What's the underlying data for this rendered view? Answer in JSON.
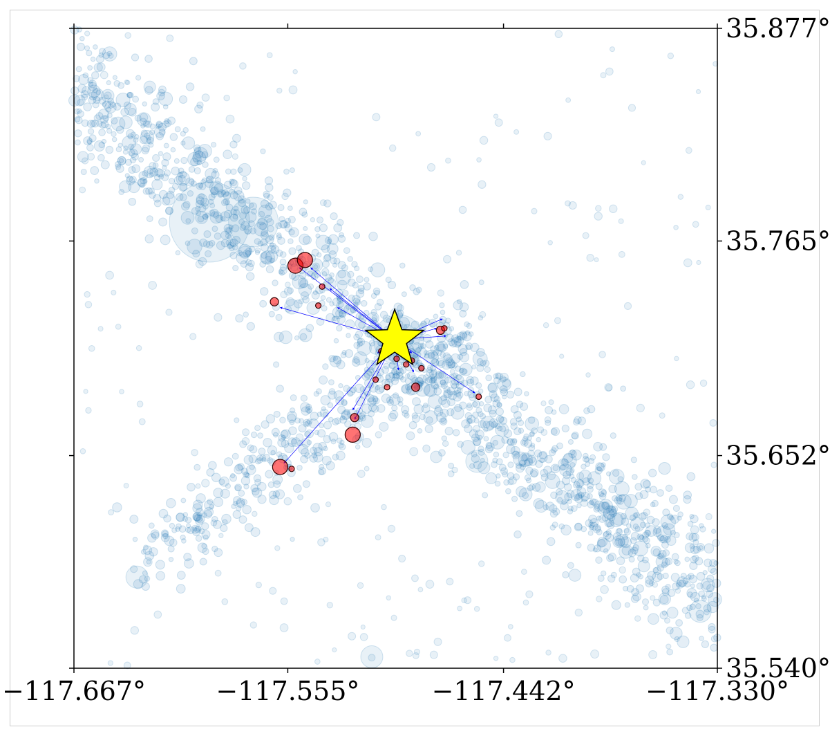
{
  "chart_data": {
    "type": "scatter",
    "title": "",
    "xlabel": "",
    "ylabel": "",
    "xlim": [
      -117.667,
      -117.33
    ],
    "ylim": [
      35.54,
      35.877
    ],
    "x_ticks": [
      -117.667,
      -117.555,
      -117.442,
      -117.33
    ],
    "x_tick_labels": [
      "−117.667°",
      "−117.555°",
      "−117.442°",
      "−117.330°"
    ],
    "y_ticks": [
      35.54,
      35.652,
      35.765,
      35.877
    ],
    "y_tick_labels": [
      "35.540°",
      "35.652°",
      "35.765°",
      "35.877°"
    ],
    "y_axis_side": "right",
    "grid": false,
    "legend": "none",
    "colors": {
      "background_events": "#1f77b4",
      "linked_events": "#ff0000",
      "arrows": "#0000ff",
      "mainshock_fill": "#ffff00",
      "mainshock_edge": "#000000",
      "axes": "#000000"
    },
    "background_events": {
      "description_cluster_1": "dense NW–SE trending seismicity band",
      "large_events": [
        {
          "lon": -117.596,
          "lat": 35.775,
          "size_class": "very-large"
        },
        {
          "lon": -117.573,
          "lat": 35.775,
          "size_class": "large"
        },
        {
          "lon": -117.497,
          "lat": 35.713,
          "size_class": "large"
        },
        {
          "lon": -117.634,
          "lat": 35.588,
          "size_class": "medium"
        },
        {
          "lon": -117.511,
          "lat": 35.546,
          "size_class": "medium"
        },
        {
          "lon": -117.456,
          "lat": 35.649,
          "size_class": "medium"
        },
        {
          "lon": -117.339,
          "lat": 35.57,
          "size_class": "medium"
        }
      ]
    },
    "mainshock": {
      "lon": -117.499,
      "lat": 35.713,
      "marker": "star"
    },
    "linked_events": [
      {
        "lon": -117.551,
        "lat": 35.752,
        "mag_class": 3
      },
      {
        "lon": -117.546,
        "lat": 35.755,
        "mag_class": 3
      },
      {
        "lon": -117.562,
        "lat": 35.733,
        "mag_class": 2
      },
      {
        "lon": -117.537,
        "lat": 35.741,
        "mag_class": 1
      },
      {
        "lon": -117.539,
        "lat": 35.731,
        "mag_class": 1
      },
      {
        "lon": -117.475,
        "lat": 35.718,
        "mag_class": 2
      },
      {
        "lon": -117.473,
        "lat": 35.719,
        "mag_class": 1
      },
      {
        "lon": -117.506,
        "lat": 35.707,
        "mag_class": 1
      },
      {
        "lon": -117.498,
        "lat": 35.703,
        "mag_class": 1
      },
      {
        "lon": -117.493,
        "lat": 35.7,
        "mag_class": 1
      },
      {
        "lon": -117.49,
        "lat": 35.702,
        "mag_class": 1
      },
      {
        "lon": -117.485,
        "lat": 35.698,
        "mag_class": 1
      },
      {
        "lon": -117.509,
        "lat": 35.692,
        "mag_class": 1
      },
      {
        "lon": -117.488,
        "lat": 35.688,
        "mag_class": 2
      },
      {
        "lon": -117.503,
        "lat": 35.688,
        "mag_class": 1
      },
      {
        "lon": -117.455,
        "lat": 35.683,
        "mag_class": 1
      },
      {
        "lon": -117.52,
        "lat": 35.672,
        "mag_class": 2
      },
      {
        "lon": -117.521,
        "lat": 35.663,
        "mag_class": 3
      },
      {
        "lon": -117.559,
        "lat": 35.646,
        "mag_class": 3
      },
      {
        "lon": -117.553,
        "lat": 35.645,
        "mag_class": 1
      }
    ],
    "arrows": [
      {
        "to_lon": -117.549,
        "to_lat": 35.751
      },
      {
        "to_lon": -117.543,
        "to_lat": 35.751
      },
      {
        "to_lon": -117.559,
        "to_lat": 35.73
      },
      {
        "to_lon": -117.533,
        "to_lat": 35.74
      },
      {
        "to_lon": -117.529,
        "to_lat": 35.73
      },
      {
        "to_lon": -117.477,
        "to_lat": 35.719
      },
      {
        "to_lon": -117.474,
        "to_lat": 35.724
      },
      {
        "to_lon": -117.472,
        "to_lat": 35.715
      },
      {
        "to_lon": -117.508,
        "to_lat": 35.706
      },
      {
        "to_lon": -117.504,
        "to_lat": 35.703
      },
      {
        "to_lon": -117.49,
        "to_lat": 35.706
      },
      {
        "to_lon": -117.508,
        "to_lat": 35.7
      },
      {
        "to_lon": -117.497,
        "to_lat": 35.697
      },
      {
        "to_lon": -117.489,
        "to_lat": 35.696
      },
      {
        "to_lon": -117.457,
        "to_lat": 35.685
      },
      {
        "to_lon": -117.521,
        "to_lat": 35.676
      },
      {
        "to_lon": -117.52,
        "to_lat": 35.671
      },
      {
        "to_lon": -117.557,
        "to_lat": 35.648
      }
    ]
  }
}
